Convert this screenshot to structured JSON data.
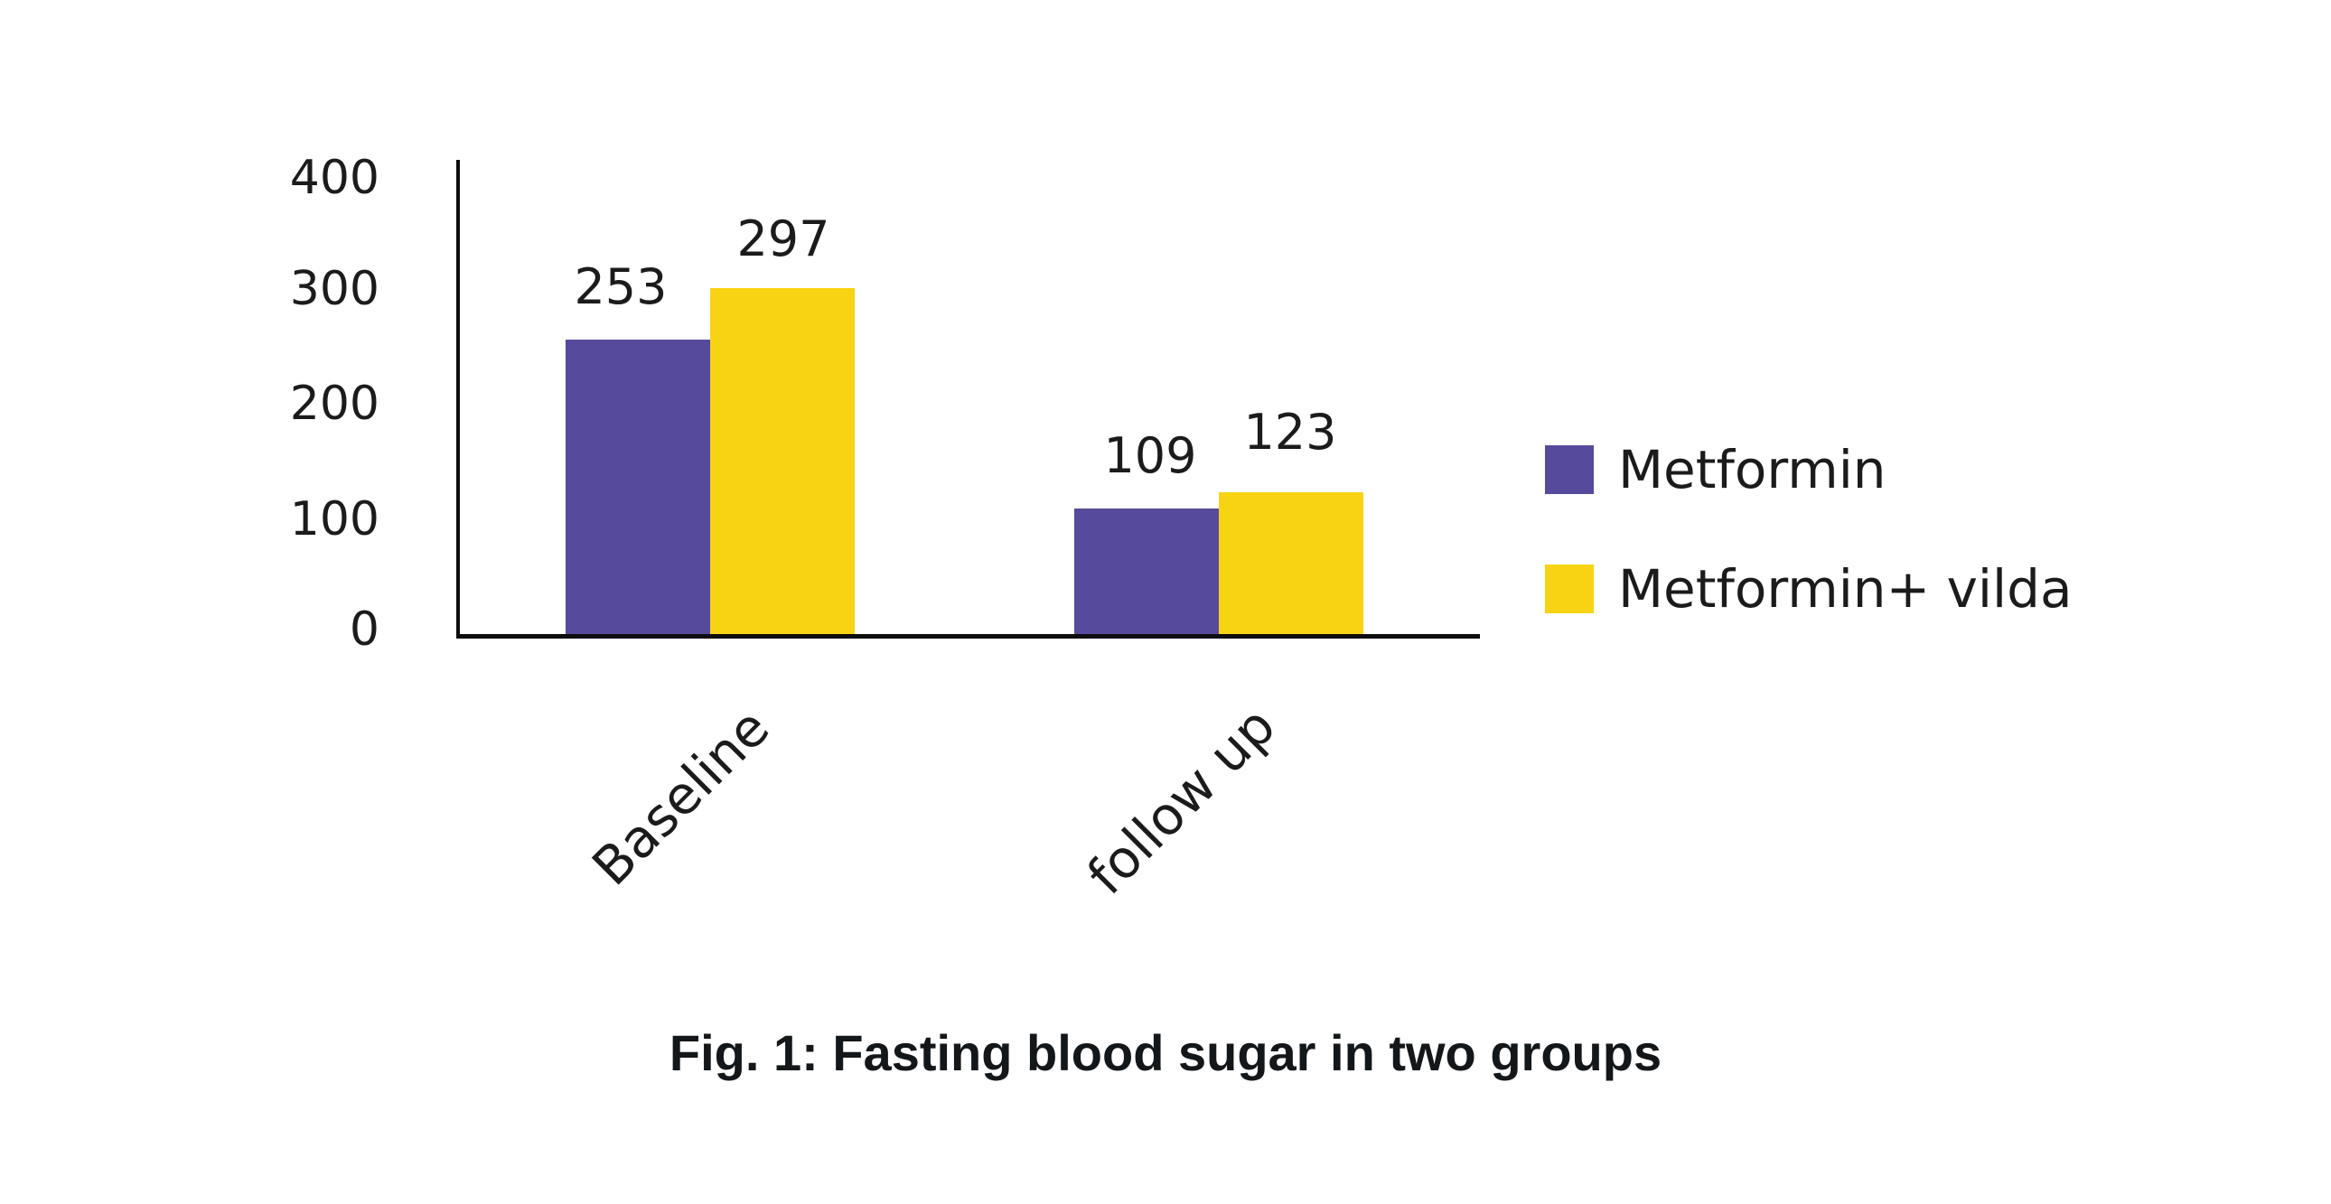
{
  "chart_data": {
    "type": "bar",
    "caption": "Fig. 1: Fasting blood sugar in two groups",
    "categories": [
      "Baseline",
      "follow up"
    ],
    "series": [
      {
        "name": "Metformin",
        "color": "#564a9c",
        "values": [
          253,
          109
        ]
      },
      {
        "name": "Metformin+ vilda",
        "color": "#f8d313",
        "values": [
          297,
          123
        ]
      }
    ],
    "y_axis": {
      "min": 0,
      "max": 400,
      "tick_interval": 100,
      "tick_labels": [
        "400",
        "300",
        "200",
        "100",
        "0"
      ]
    },
    "grid": false,
    "bar_value_labels_shown": true,
    "legend_position": "right",
    "category_label_rotation_deg": -45
  },
  "colors": {
    "background": "#ffffff",
    "axis": "#0d0d0d",
    "text": "#1b1b1b",
    "caption_text": "#14171a"
  }
}
